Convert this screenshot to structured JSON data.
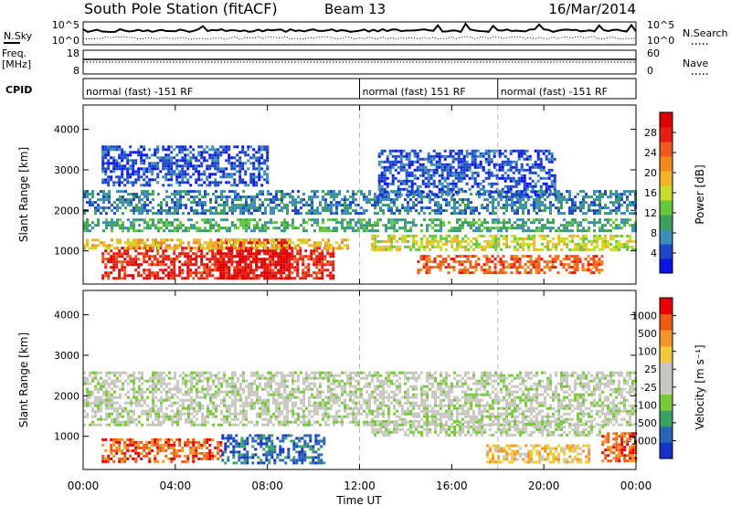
{
  "header": {
    "station": "South Pole Station (fitACF)",
    "beam": "Beam 13",
    "date": "16/Mar/2014"
  },
  "noise_panel": {
    "left_label": "N.Sky",
    "right_label": "N.Search",
    "left_ticks": [
      "10^5",
      "10^0"
    ],
    "right_ticks": [
      "10^5",
      "10^0"
    ]
  },
  "freq_panel": {
    "left_label_1": "Freq.",
    "left_label_2": "[MHz]",
    "left_ticks": [
      "18",
      "8"
    ],
    "right_label": "Nave",
    "right_ticks": [
      "60",
      "0"
    ]
  },
  "cpid_panel": {
    "label": "CPID",
    "segments": [
      {
        "start_hour": 0,
        "text": "normal (fast) -151 RF"
      },
      {
        "start_hour": 12,
        "text": "normal (fast) 151 RF"
      },
      {
        "start_hour": 18,
        "text": "normal (fast) -151 RF"
      }
    ]
  },
  "chart_data": [
    {
      "type": "heatmap",
      "name": "power",
      "ylabel": "Slant Range [km]",
      "ylim": [
        180,
        4600
      ],
      "xlim": [
        0,
        24
      ],
      "yticks": [
        "1000",
        "2000",
        "3000",
        "4000"
      ],
      "colorbar": {
        "label": "Power [dB]",
        "ticks": [
          "4",
          "8",
          "12",
          "16",
          "20",
          "24",
          "28"
        ],
        "colors": [
          "#0a14e6",
          "#1e46c8",
          "#3c8cb4",
          "#3ca05a",
          "#64c83c",
          "#c8dc28",
          "#f0b428",
          "#f08c1e",
          "#f05a1e",
          "#e61e14",
          "#dc0000"
        ]
      },
      "bands": [
        {
          "t0": 0.8,
          "t1": 10.8,
          "r_lo": 350,
          "r_hi": 1100,
          "level": 9
        },
        {
          "t0": 5.8,
          "t1": 8.9,
          "r_lo": 350,
          "r_hi": 1300,
          "level": 10
        },
        {
          "t0": 0,
          "t1": 11.5,
          "r_lo": 1050,
          "r_hi": 1300,
          "level": 6
        },
        {
          "t0": 0,
          "t1": 24,
          "r_lo": 1500,
          "r_hi": 1800,
          "level": 3
        },
        {
          "t0": 0,
          "t1": 24,
          "r_lo": 1900,
          "r_hi": 2500,
          "level": 2
        },
        {
          "t0": 0.8,
          "t1": 8,
          "r_lo": 2600,
          "r_hi": 3600,
          "level": 1
        },
        {
          "t0": 12.5,
          "t1": 24,
          "r_lo": 1000,
          "r_hi": 1400,
          "level": 5
        },
        {
          "t0": 14.5,
          "t1": 22.5,
          "r_lo": 450,
          "r_hi": 900,
          "level": 8
        },
        {
          "t0": 12.8,
          "t1": 20.5,
          "r_lo": 2400,
          "r_hi": 3500,
          "level": 1
        }
      ]
    },
    {
      "type": "heatmap",
      "name": "velocity",
      "ylabel": "Slant Range [km]",
      "xlabel": "Time UT",
      "ylim": [
        180,
        4600
      ],
      "xlim": [
        0,
        24
      ],
      "yticks": [
        "1000",
        "2000",
        "3000",
        "4000"
      ],
      "xticks": [
        "00:00",
        "04:00",
        "08:00",
        "12:00",
        "16:00",
        "20:00",
        "00:00"
      ],
      "colorbar": {
        "label": "Velocity [m s⁻¹]",
        "ticks": [
          "1000",
          "500",
          "100",
          "25",
          "-25",
          "-100",
          "-500",
          "-1000"
        ],
        "colors": [
          "#1432c8",
          "#2864b4",
          "#3ca064",
          "#78c83c",
          "#c8c8c0",
          "#c8c8c0",
          "#f0c83c",
          "#f09628",
          "#f05a14",
          "#e60000"
        ]
      },
      "bands": [
        {
          "t0": 0.8,
          "t1": 6,
          "r_lo": 380,
          "r_hi": 950,
          "level": 8
        },
        {
          "t0": 6,
          "t1": 10.5,
          "r_lo": 350,
          "r_hi": 1050,
          "level": 1
        },
        {
          "t0": 0,
          "t1": 24,
          "r_lo": 1300,
          "r_hi": 2600,
          "level": 4
        },
        {
          "t0": 12.5,
          "t1": 22.5,
          "r_lo": 1000,
          "r_hi": 1400,
          "level": 4
        },
        {
          "t0": 17.5,
          "t1": 22,
          "r_lo": 350,
          "r_hi": 800,
          "level": 6
        },
        {
          "t0": 22.5,
          "t1": 24,
          "r_lo": 400,
          "r_hi": 1100,
          "level": 8
        }
      ]
    }
  ]
}
